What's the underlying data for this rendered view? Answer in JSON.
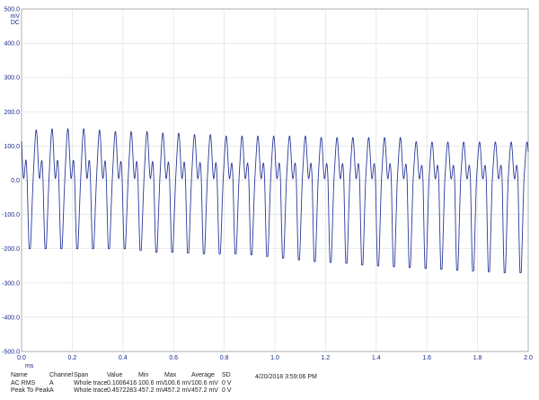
{
  "channel_units": {
    "unit": "mV",
    "coupling": "DC"
  },
  "x_unit": "ms",
  "timestamp": "4/20/2018 3:59:06 PM",
  "measurements": {
    "headers": [
      "Name",
      "Channel",
      "Span",
      "Value",
      "Min",
      "Max",
      "Average",
      "SD"
    ],
    "rows": [
      [
        "AC RMS",
        "A",
        "Whole trace",
        "0.1006416",
        "100.6 mV",
        "100.6 mV",
        "100.6 mV",
        "0 V"
      ],
      [
        "Peak To Peak",
        "A",
        "Whole trace",
        "0.4572283",
        "457.2 mV",
        "457.2 mV",
        "457.2 mV",
        "0 V"
      ]
    ]
  },
  "chart_data": {
    "type": "line",
    "title": "",
    "xlabel": "ms",
    "ylabel": "mV",
    "xlim": [
      0.0,
      2.0
    ],
    "ylim": [
      -500.0,
      500.0
    ],
    "x_ticks": [
      "0.0",
      "0.2",
      "0.4",
      "0.6",
      "0.8",
      "1.0",
      "1.2",
      "1.4",
      "1.6",
      "1.8",
      "2.0"
    ],
    "y_ticks": [
      "500.0",
      "400.0",
      "300.0",
      "200.0",
      "100.0",
      "0.0",
      "-100.0",
      "-200.0",
      "-300.0",
      "-400.0",
      "-500.0"
    ],
    "grid": true,
    "line_color": "#2b3a9c",
    "series": [
      {
        "x": [
          0.0,
          0.0625,
          0.125,
          0.1875,
          0.25,
          0.3125,
          0.375,
          0.4375,
          0.5,
          0.5625,
          0.625,
          0.6875,
          0.75,
          0.8125,
          0.875,
          0.9375,
          1.0,
          1.0625,
          1.125,
          1.1875,
          1.25,
          1.3125,
          1.375,
          1.4375,
          1.5,
          1.5625,
          1.625,
          1.6875,
          1.75,
          1.8125,
          1.875,
          1.9375
        ],
        "peak_max": [
          180,
          170,
          175,
          175,
          175,
          170,
          165,
          165,
          165,
          160,
          160,
          155,
          155,
          150,
          150,
          150,
          150,
          150,
          150,
          145,
          145,
          145,
          145,
          145,
          145,
          130,
          130,
          130,
          130,
          130,
          130,
          130
        ],
        "peak_min": [
          -200,
          -200,
          -200,
          -200,
          -200,
          -200,
          -200,
          -200,
          -210,
          -210,
          -210,
          -215,
          -215,
          -215,
          -215,
          -220,
          -225,
          -230,
          -235,
          -240,
          -240,
          -245,
          -250,
          -250,
          -255,
          -255,
          -260,
          -260,
          -265,
          -265,
          -270,
          -270
        ]
      }
    ]
  }
}
